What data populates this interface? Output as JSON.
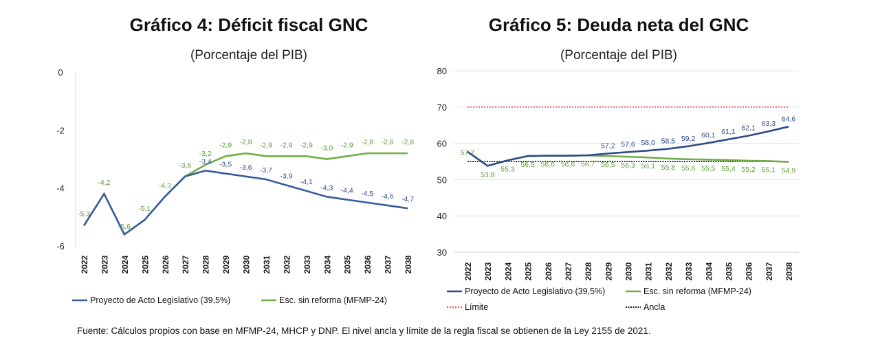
{
  "chart_data": [
    {
      "type": "line",
      "title": "Gráfico 4: Déficit fiscal GNC",
      "subtitle": "(Porcentaje del PIB)",
      "ylim": [
        -6,
        0
      ],
      "yticks": [
        0,
        -2,
        -4,
        -6
      ],
      "grid": false,
      "legend": "bottom",
      "categories": [
        "2022",
        "2023",
        "2024",
        "2025",
        "2026",
        "2027",
        "2028",
        "2029",
        "2030",
        "2031",
        "2032",
        "2033",
        "2034",
        "2035",
        "2036",
        "2037",
        "2038"
      ],
      "series": [
        {
          "name": "Proyecto de Acto Legislativo (39,5%)",
          "color": "#3a5aa0",
          "values": [
            -5.3,
            -4.2,
            -5.6,
            -5.1,
            -4.3,
            -3.6,
            -3.4,
            -3.5,
            -3.6,
            -3.7,
            -3.9,
            -4.1,
            -4.3,
            -4.4,
            -4.5,
            -4.6,
            -4.7
          ]
        },
        {
          "name": "Esc. sin reforma (MFMP-24)",
          "color": "#70ad47",
          "values": [
            -5.3,
            -4.2,
            -5.6,
            -5.1,
            -4.3,
            -3.6,
            -3.2,
            -2.9,
            -2.8,
            -2.9,
            -2.9,
            -2.9,
            -3.0,
            -2.9,
            -2.8,
            -2.8,
            -2.8
          ]
        }
      ]
    },
    {
      "type": "line",
      "title": "Gráfico 5: Deuda neta del GNC",
      "subtitle": "(Porcentaje del PIB)",
      "ylim": [
        30,
        80
      ],
      "yticks": [
        80,
        70,
        60,
        50,
        40,
        30
      ],
      "grid": true,
      "legend": "bottom",
      "categories": [
        "2022",
        "2023",
        "2024",
        "2025",
        "2026",
        "2027",
        "2028",
        "2029",
        "2030",
        "2031",
        "2032",
        "2033",
        "2034",
        "2035",
        "2036",
        "2037",
        "2038"
      ],
      "series": [
        {
          "name": "Proyecto de Acto Legislativo (39,5%)",
          "color": "#2f4a8a",
          "values": [
            57.7,
            53.8,
            55.3,
            56.5,
            56.6,
            56.6,
            56.7,
            57.2,
            57.6,
            58.0,
            58.5,
            59.2,
            60.1,
            61.1,
            62.1,
            63.3,
            64.6
          ]
        },
        {
          "name": "Esc. sin reforma (MFMP-24)",
          "color": "#70ad47",
          "values": [
            57.7,
            53.8,
            55.3,
            56.5,
            56.6,
            56.6,
            56.7,
            56.5,
            56.3,
            56.1,
            55.8,
            55.6,
            55.5,
            55.4,
            55.2,
            55.1,
            54.9
          ]
        },
        {
          "name": "Límite",
          "color": "#e06666",
          "values": [
            70,
            70,
            70,
            70,
            70,
            70,
            70,
            70,
            70,
            70,
            70,
            70,
            70,
            70,
            70,
            70,
            70
          ]
        },
        {
          "name": "Ancla",
          "color": "#333333",
          "values": [
            55,
            55,
            55,
            55,
            55,
            55,
            55,
            55,
            55,
            55,
            55,
            55,
            55,
            55,
            55,
            55,
            55
          ]
        }
      ]
    }
  ],
  "footnote": "Fuente: Cálculos propios con base en MFMP-24, MHCP y DNP. El nivel ancla y límite de la regla fiscal se obtienen de la Ley 2155 de 2021."
}
